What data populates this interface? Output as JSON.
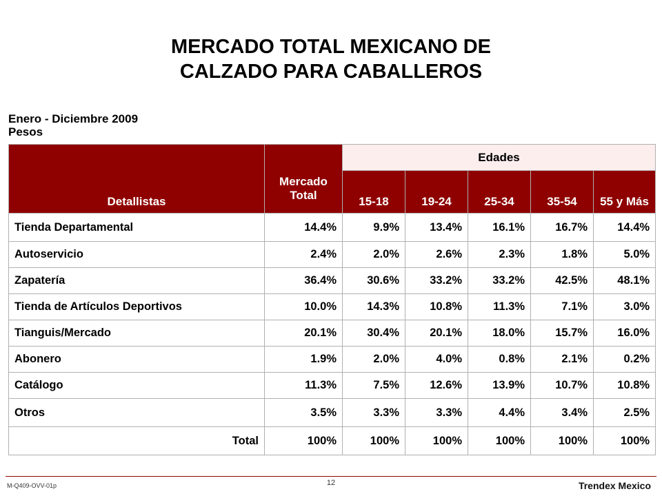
{
  "title": {
    "line1": "MERCADO TOTAL MEXICANO DE",
    "line2": "CALZADO PARA CABALLEROS"
  },
  "subtitle": {
    "period": "Enero - Diciembre 2009",
    "unit": "Pesos"
  },
  "table": {
    "header": {
      "retailers": "Detallistas",
      "market": "Mercado Total",
      "ages_group": "Edades",
      "age_columns": [
        "15-18",
        "19-24",
        "25-34",
        "35-54",
        "55 y Más"
      ]
    },
    "rows": [
      {
        "name": "Tienda Departamental",
        "values": [
          "14.4%",
          "9.9%",
          "13.4%",
          "16.1%",
          "16.7%",
          "14.4%"
        ]
      },
      {
        "name": "Autoservicio",
        "values": [
          "2.4%",
          "2.0%",
          "2.6%",
          "2.3%",
          "1.8%",
          "5.0%"
        ]
      },
      {
        "name": "Zapatería",
        "values": [
          "36.4%",
          "30.6%",
          "33.2%",
          "33.2%",
          "42.5%",
          "48.1%"
        ]
      },
      {
        "name": "Tienda de Artículos Deportivos",
        "values": [
          "10.0%",
          "14.3%",
          "10.8%",
          "11.3%",
          "7.1%",
          "3.0%"
        ]
      },
      {
        "name": "Tianguis/Mercado",
        "values": [
          "20.1%",
          "30.4%",
          "20.1%",
          "18.0%",
          "15.7%",
          "16.0%"
        ]
      },
      {
        "name": "Abonero",
        "values": [
          "1.9%",
          "2.0%",
          "4.0%",
          "0.8%",
          "2.1%",
          "0.2%"
        ]
      },
      {
        "name": "Catálogo",
        "values": [
          "11.3%",
          "7.5%",
          "12.6%",
          "13.9%",
          "10.7%",
          "10.8%"
        ]
      },
      {
        "name": "Otros",
        "values": [
          "3.5%",
          "3.3%",
          "3.3%",
          "4.4%",
          "3.4%",
          "2.5%"
        ]
      }
    ],
    "total_row": {
      "name": "Total",
      "values": [
        "100%",
        "100%",
        "100%",
        "100%",
        "100%",
        "100%"
      ]
    }
  },
  "footer": {
    "code": "M-Q409-OVV-01p",
    "page": "12",
    "brand": "Trendex Mexico"
  },
  "colors": {
    "header_bg": "#8f0000",
    "header_text": "#ffffff",
    "footer_rule": "#8f0000"
  }
}
